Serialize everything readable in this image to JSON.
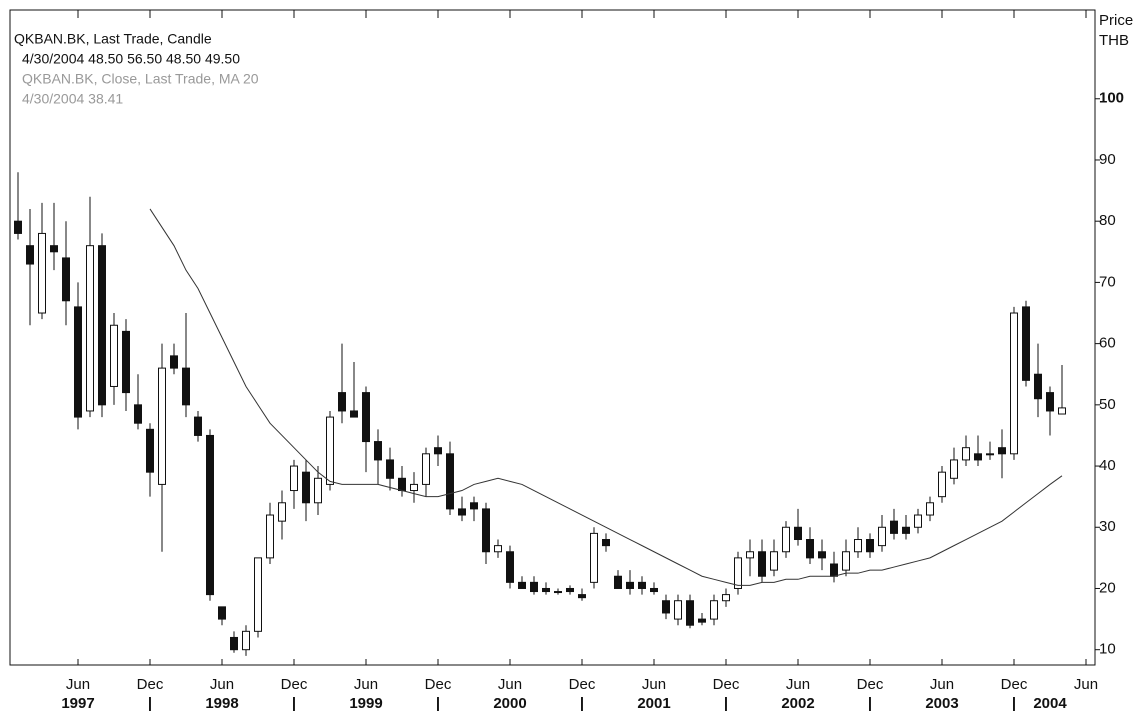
{
  "chart_data": {
    "type": "candlestick",
    "legend": [
      "QKBAN.BK, Last Trade, Candle",
      "4/30/2004 48.50 56.50 48.50 49.50",
      "QKBAN.BK, Close, Last Trade, MA 20",
      "4/30/2004 38.41"
    ],
    "y_label": [
      "Price",
      "THB"
    ],
    "x": [
      "1997-01",
      "1997-02",
      "1997-03",
      "1997-04",
      "1997-05",
      "1997-06",
      "1997-07",
      "1997-08",
      "1997-09",
      "1997-10",
      "1997-11",
      "1997-12",
      "1998-01",
      "1998-02",
      "1998-03",
      "1998-04",
      "1998-05",
      "1998-06",
      "1998-07",
      "1998-08",
      "1998-09",
      "1998-10",
      "1998-11",
      "1998-12",
      "1999-01",
      "1999-02",
      "1999-03",
      "1999-04",
      "1999-05",
      "1999-06",
      "1999-07",
      "1999-08",
      "1999-09",
      "1999-10",
      "1999-11",
      "1999-12",
      "2000-01",
      "2000-02",
      "2000-03",
      "2000-04",
      "2000-05",
      "2000-06",
      "2000-07",
      "2000-08",
      "2000-09",
      "2000-10",
      "2000-11",
      "2000-12",
      "2001-01",
      "2001-02",
      "2001-03",
      "2001-04",
      "2001-05",
      "2001-06",
      "2001-07",
      "2001-08",
      "2001-09",
      "2001-10",
      "2001-11",
      "2001-12",
      "2002-01",
      "2002-02",
      "2002-03",
      "2002-04",
      "2002-05",
      "2002-06",
      "2002-07",
      "2002-08",
      "2002-09",
      "2002-10",
      "2002-11",
      "2002-12",
      "2003-01",
      "2003-02",
      "2003-03",
      "2003-04",
      "2003-05",
      "2003-06",
      "2003-07",
      "2003-08",
      "2003-09",
      "2003-10",
      "2003-11",
      "2003-12",
      "2004-01",
      "2004-02",
      "2004-03",
      "2004-04"
    ],
    "series": [
      {
        "name": "QKBAN.BK, Last Trade, Candle",
        "up_color": "#ffffff",
        "down_color": "#111111",
        "open": [
          80,
          76,
          65,
          76,
          74,
          66,
          49,
          76,
          53,
          62,
          50,
          46,
          37,
          58,
          56,
          48,
          45,
          17,
          12,
          10,
          13,
          25,
          31,
          36,
          39,
          34,
          37,
          52,
          49,
          52,
          44,
          41,
          38,
          36,
          37,
          43,
          42,
          33,
          34,
          33,
          26,
          26,
          21,
          21,
          20,
          19.5,
          20,
          19,
          21,
          28,
          22,
          21,
          21,
          20,
          18,
          15,
          18,
          15,
          15,
          18,
          20,
          25,
          26,
          23,
          26,
          30,
          28,
          26,
          24,
          23,
          26,
          28,
          27,
          31,
          30,
          30,
          32,
          35,
          38,
          41,
          42,
          42,
          43,
          42,
          66,
          55,
          52,
          48.5
        ],
        "high": [
          88,
          82,
          83,
          83,
          80,
          70,
          84,
          78,
          65,
          64,
          55,
          47,
          60,
          60,
          65,
          49,
          46,
          17,
          13,
          14,
          25,
          34,
          36,
          41,
          41,
          40,
          49,
          60,
          57,
          53,
          46,
          43,
          40,
          39,
          43,
          45,
          44,
          35,
          35,
          34,
          28,
          27,
          22,
          22,
          21,
          20,
          20.5,
          20,
          30,
          29,
          23,
          23,
          22,
          21,
          19,
          19,
          19,
          16,
          19,
          20,
          26,
          28,
          28,
          28,
          31,
          33,
          30,
          28,
          26,
          28,
          30,
          29,
          32,
          33,
          32,
          33,
          35,
          40,
          43,
          45,
          45,
          44,
          46,
          66,
          67,
          60,
          53,
          56.5
        ],
        "low": [
          77,
          63,
          64,
          72,
          63,
          46,
          48,
          48,
          50,
          49,
          46,
          35,
          26,
          55,
          48,
          44,
          18,
          14,
          9.5,
          9,
          12,
          24,
          28,
          33,
          31,
          32,
          36,
          47,
          48,
          39,
          37,
          36,
          35,
          34,
          35,
          40,
          32,
          31,
          31,
          24,
          25,
          20,
          20,
          19,
          19,
          19,
          19,
          18,
          20,
          26,
          20,
          19,
          19,
          19,
          15,
          14,
          13.5,
          14,
          14,
          17,
          19,
          22,
          21,
          22,
          25,
          27,
          24,
          23,
          21,
          22,
          25,
          25,
          26,
          28,
          28,
          29,
          31,
          34,
          37,
          40,
          40,
          41,
          38,
          41,
          53,
          48,
          45,
          48.5
        ],
        "close": [
          78,
          73,
          78,
          75,
          67,
          48,
          76,
          50,
          63,
          52,
          47,
          39,
          56,
          56,
          50,
          45,
          19,
          15,
          10,
          13,
          25,
          32,
          34,
          40,
          34,
          38,
          48,
          49,
          48,
          44,
          41,
          38,
          36,
          37,
          42,
          42,
          33,
          32,
          33,
          26,
          27,
          21,
          20,
          19.5,
          19.5,
          19.5,
          19.5,
          18.5,
          29,
          27,
          20,
          20,
          20,
          19.5,
          16,
          18,
          14,
          14.5,
          18,
          19,
          25,
          26,
          22,
          26,
          30,
          28,
          25,
          25,
          22,
          26,
          28,
          26,
          30,
          29,
          29,
          32,
          34,
          39,
          41,
          43,
          41,
          42,
          42,
          65,
          54,
          51,
          49,
          49.5
        ]
      }
    ],
    "ma": {
      "name": "QKBAN.BK, Close, Last Trade, MA 20",
      "color": "#333333",
      "values": [
        null,
        null,
        null,
        null,
        null,
        null,
        null,
        null,
        null,
        null,
        null,
        82,
        79,
        76,
        72,
        69,
        65,
        61,
        57,
        53,
        50,
        47,
        45,
        43,
        41,
        39,
        37.5,
        37,
        37,
        37,
        37,
        36.5,
        36,
        35.5,
        35,
        35,
        35.5,
        36,
        37,
        37.5,
        38,
        37.5,
        37,
        36,
        35,
        34,
        33,
        32,
        31,
        30,
        29,
        28,
        27,
        26,
        25,
        24,
        23,
        22,
        21.5,
        21,
        20.5,
        20.5,
        21,
        21,
        21.5,
        21.5,
        22,
        22,
        22,
        22.5,
        22.5,
        23,
        23,
        23.5,
        24,
        24.5,
        25,
        26,
        27,
        28,
        29,
        30,
        31,
        32.5,
        34,
        35.5,
        37,
        38.41
      ]
    },
    "ylim": [
      7.5,
      114.5
    ],
    "yticks": [
      10,
      20,
      30,
      40,
      50,
      60,
      70,
      80,
      90,
      100
    ],
    "xticks": [
      {
        "value": "1997-06",
        "label": "Jun"
      },
      {
        "value": "1997-12",
        "label": "Dec"
      },
      {
        "value": "1998-06",
        "label": "Jun"
      },
      {
        "value": "1998-12",
        "label": "Dec"
      },
      {
        "value": "1999-06",
        "label": "Jun"
      },
      {
        "value": "1999-12",
        "label": "Dec"
      },
      {
        "value": "2000-06",
        "label": "Jun"
      },
      {
        "value": "2000-12",
        "label": "Dec"
      },
      {
        "value": "2001-06",
        "label": "Jun"
      },
      {
        "value": "2001-12",
        "label": "Dec"
      },
      {
        "value": "2002-06",
        "label": "Jun"
      },
      {
        "value": "2002-12",
        "label": "Dec"
      },
      {
        "value": "2003-06",
        "label": "Jun"
      },
      {
        "value": "2003-12",
        "label": "Dec"
      },
      {
        "value": "2004-06",
        "label": "Jun"
      }
    ],
    "xticks2": [
      {
        "value": "1997-06",
        "label": "1997"
      },
      {
        "value": "1997-12",
        "label": "|"
      },
      {
        "value": "1998-06",
        "label": "1998"
      },
      {
        "value": "1998-12",
        "label": "|"
      },
      {
        "value": "1999-06",
        "label": "1999"
      },
      {
        "value": "1999-12",
        "label": "|"
      },
      {
        "value": "2000-06",
        "label": "2000"
      },
      {
        "value": "2000-12",
        "label": "|"
      },
      {
        "value": "2001-06",
        "label": "2001"
      },
      {
        "value": "2001-12",
        "label": "|"
      },
      {
        "value": "2002-06",
        "label": "2002"
      },
      {
        "value": "2002-12",
        "label": "|"
      },
      {
        "value": "2003-06",
        "label": "2003"
      },
      {
        "value": "2003-12",
        "label": "|"
      },
      {
        "value": "2004-03",
        "label": "2004"
      }
    ]
  }
}
